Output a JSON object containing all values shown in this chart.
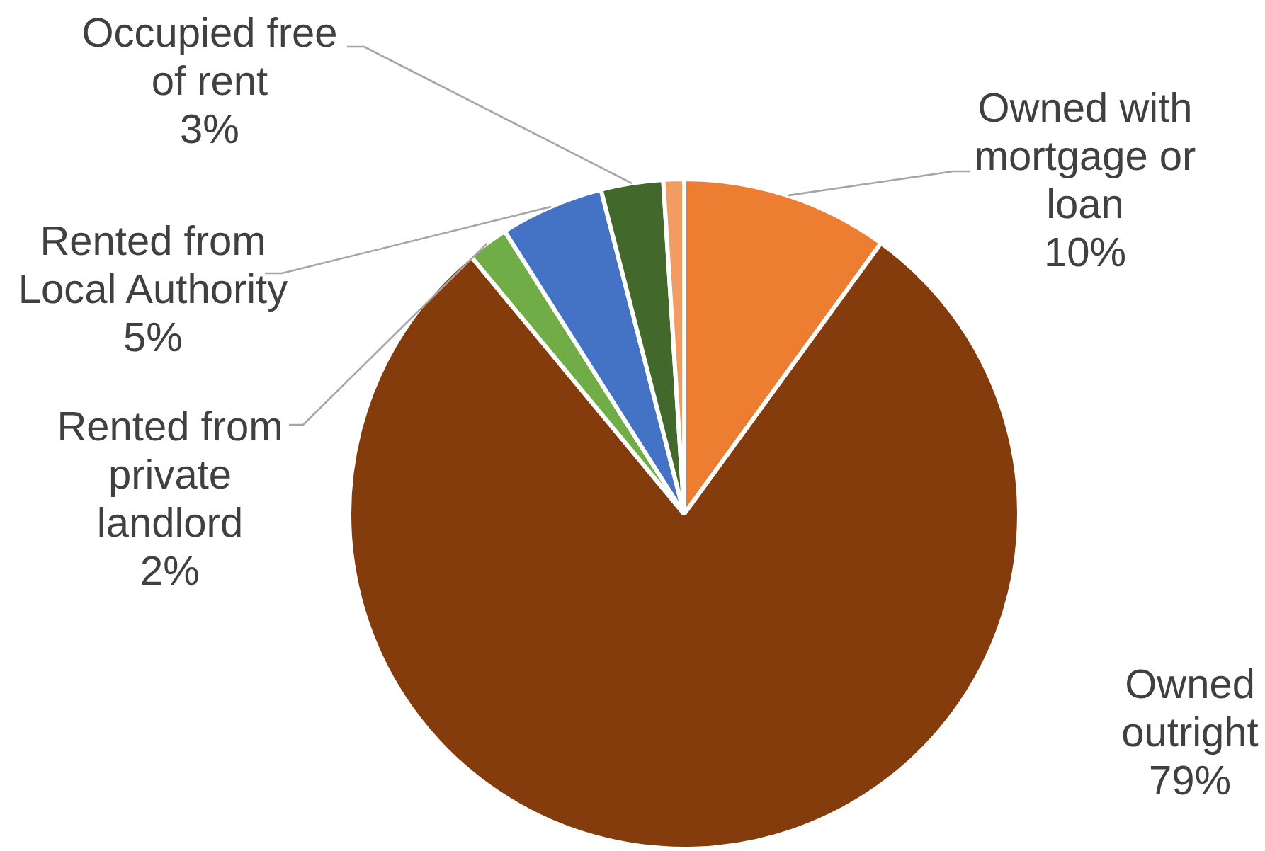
{
  "chart_data": {
    "type": "pie",
    "categories": [
      "Owned with mortgage or loan",
      "Owned outright",
      "Rented from private landlord",
      "Rented from Local Authority",
      "Occupied free of rent",
      null
    ],
    "values": [
      10,
      79,
      2,
      5,
      3,
      1
    ],
    "colors": [
      "#ed7d31",
      "#843c0c",
      "#70ad47",
      "#4472c4",
      "#43682b",
      "#f19c62"
    ],
    "value_labels": [
      "10%",
      "79%",
      "2%",
      "5%",
      "3%",
      null
    ]
  }
}
